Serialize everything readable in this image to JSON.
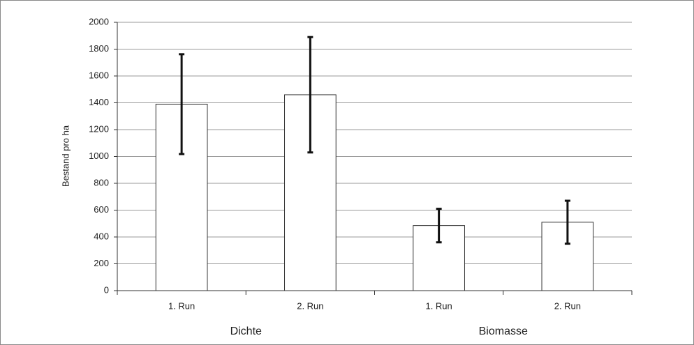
{
  "chart_data": {
    "type": "bar",
    "categories": [
      "1. Run",
      "2. Run",
      "1. Run",
      "2. Run"
    ],
    "groups": [
      "Dichte",
      "Biomasse"
    ],
    "values": [
      1390,
      1460,
      485,
      510
    ],
    "errors": [
      372,
      430,
      125,
      160
    ],
    "color": "#ffffff",
    "y_label": "Bestand pro ha",
    "ylim": [
      0,
      2000
    ],
    "yticks": [
      0,
      200,
      400,
      600,
      800,
      1000,
      1200,
      1400,
      1600,
      1800,
      2000
    ],
    "grid": true
  }
}
